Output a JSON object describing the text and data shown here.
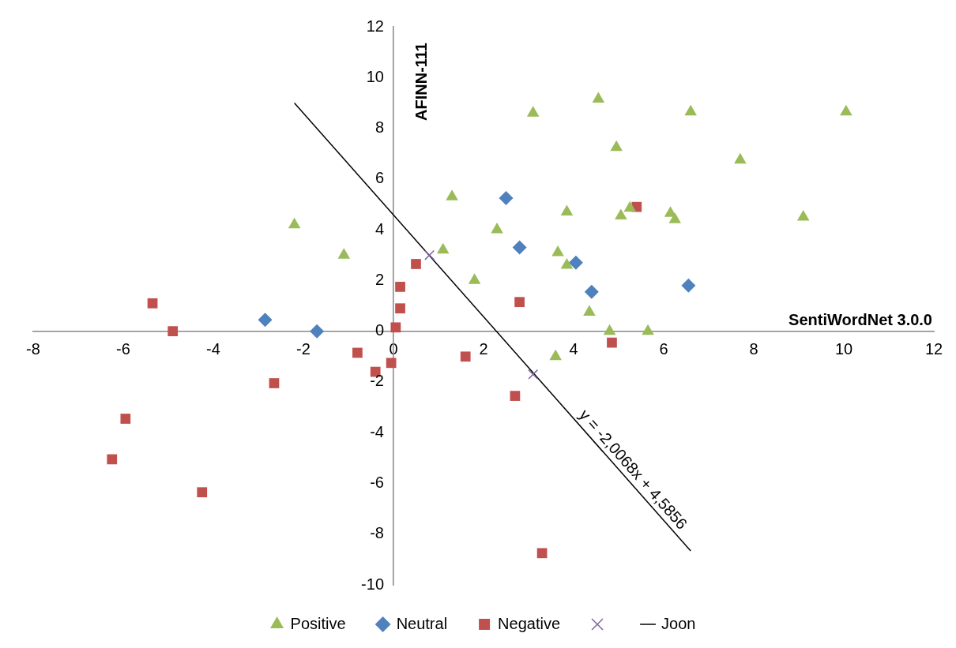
{
  "chart_data": {
    "type": "scatter",
    "xlabel": "SentiWordNet 3.0.0",
    "ylabel": "AFINN-111",
    "xlim": [
      -8,
      12
    ],
    "xticks": [
      -8,
      -6,
      -4,
      -2,
      0,
      2,
      4,
      6,
      8,
      10,
      12
    ],
    "ylim": [
      -10,
      12
    ],
    "yticks": [
      -10,
      -8,
      -6,
      -4,
      -2,
      0,
      2,
      4,
      6,
      8,
      10,
      12
    ],
    "grid": false,
    "legend": "bottom",
    "series": [
      {
        "name": "Positive",
        "marker": "triangle",
        "color": "#9bbb59",
        "x": [
          -2.2,
          -1.1,
          1.1,
          1.3,
          1.8,
          2.3,
          3.1,
          3.65,
          3.85,
          3.85,
          4.35,
          4.55,
          4.8,
          4.95,
          5.05,
          5.25,
          5.65,
          6.15,
          6.25,
          6.6,
          7.7,
          9.1,
          10.05,
          3.6
        ],
        "values": [
          4.2,
          3.0,
          3.2,
          5.3,
          2.0,
          4.0,
          8.6,
          3.1,
          2.6,
          4.7,
          0.75,
          9.15,
          0,
          7.25,
          4.55,
          4.85,
          0,
          4.65,
          4.4,
          8.65,
          6.75,
          4.5,
          8.65,
          -1.0
        ]
      },
      {
        "name": "Neutral",
        "marker": "diamond",
        "color": "#4f81bd",
        "x": [
          -2.85,
          -1.7,
          2.5,
          2.8,
          4.05,
          4.4,
          6.55
        ],
        "values": [
          0.45,
          0,
          5.25,
          3.3,
          2.7,
          1.55,
          1.8
        ]
      },
      {
        "name": "Negative",
        "marker": "square",
        "color": "#c0504d",
        "x": [
          -5.35,
          -4.9,
          -2.65,
          -5.95,
          -6.25,
          -4.25,
          -0.8,
          -0.4,
          -0.05,
          0.05,
          0.15,
          0.15,
          0.5,
          1.6,
          2.8,
          2.7,
          3.3,
          4.85,
          5.4
        ],
        "values": [
          1.1,
          0,
          -2.05,
          -3.45,
          -5.05,
          -6.35,
          -0.85,
          -1.6,
          -1.25,
          0.15,
          0.9,
          1.75,
          2.65,
          -1.0,
          1.15,
          -2.55,
          -8.75,
          -0.45,
          4.9
        ]
      },
      {
        "marker": "cross",
        "color": "#8064a2",
        "x": [
          0.8,
          3.1
        ],
        "values": [
          3.0,
          -1.7
        ]
      },
      {
        "name": "Joon",
        "type": "line",
        "marker": "none",
        "line_style": "solid",
        "color": "#000000",
        "x": [
          -2.2,
          6.6
        ],
        "values": [
          9.0,
          -8.66
        ]
      }
    ],
    "annotations": [
      {
        "text": "y = -2,0068x + 4,5856",
        "x": 5.1,
        "y": -5.8
      }
    ]
  }
}
